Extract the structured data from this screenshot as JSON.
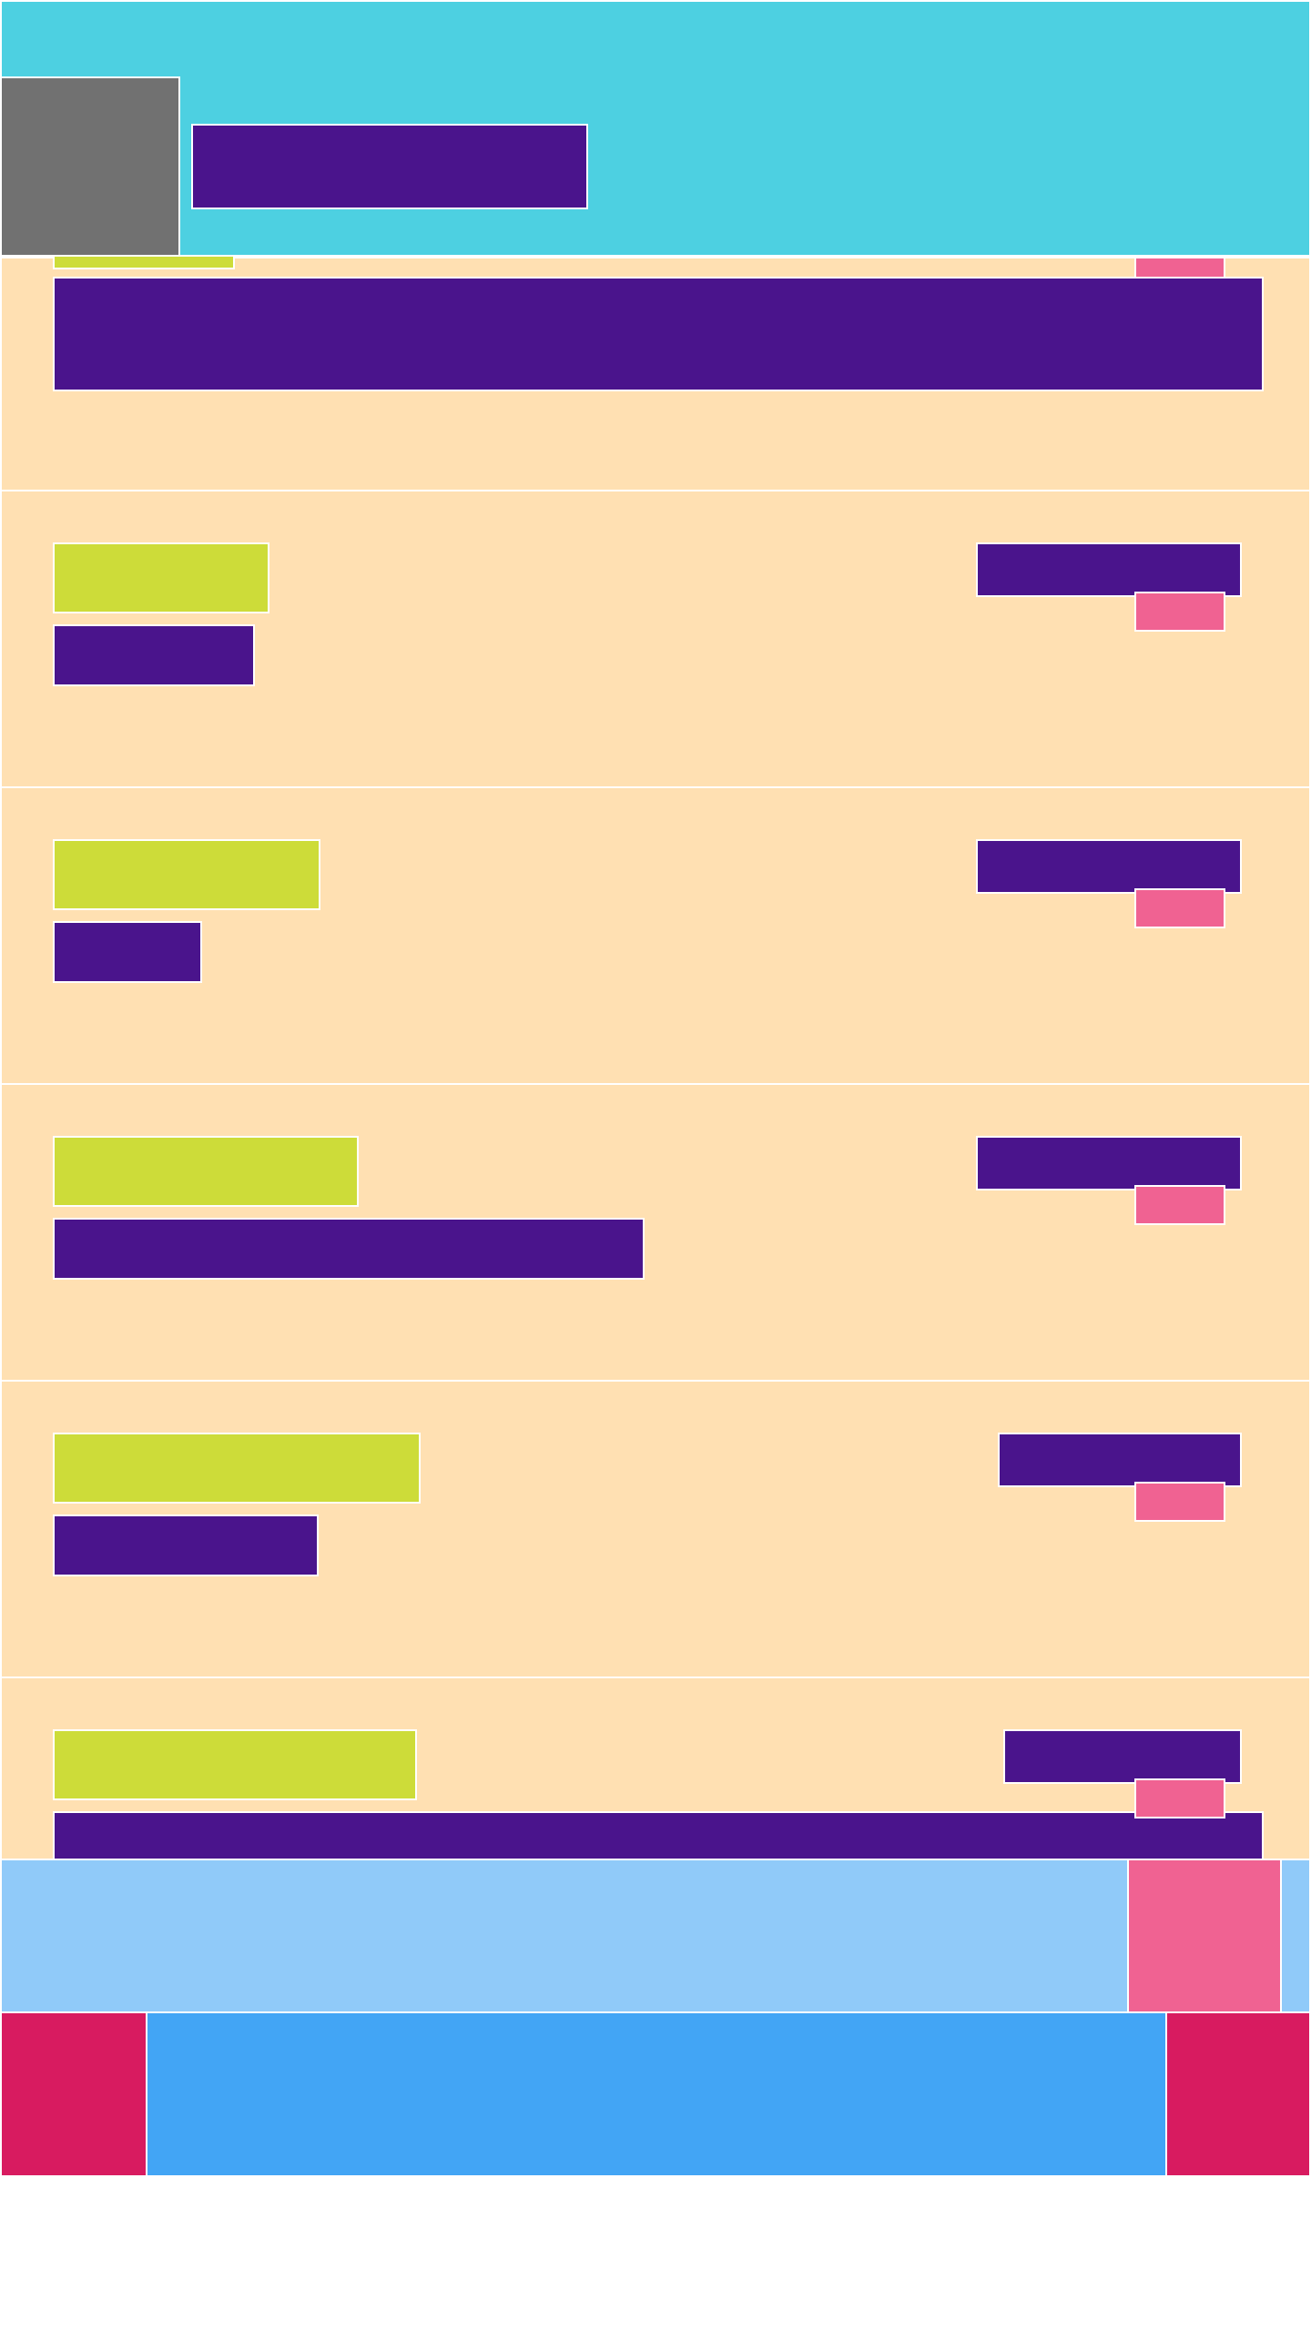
{
  "app": {
    "title": ""
  },
  "header": {
    "title": ""
  },
  "list": {
    "items": [
      {
        "label": "",
        "value": "",
        "date": "",
        "badge": ""
      },
      {
        "label": "",
        "value": "",
        "date": "",
        "badge": ""
      },
      {
        "label": "",
        "value": "",
        "date": "",
        "badge": ""
      },
      {
        "label": "",
        "value": "",
        "date": "",
        "badge": ""
      },
      {
        "label": "",
        "value": "",
        "date": "",
        "badge": ""
      },
      {
        "label": "",
        "value": "",
        "date": "",
        "badge": ""
      }
    ]
  },
  "action_bar": {
    "text": "",
    "button_label": ""
  },
  "bottom_nav": {
    "center_label": ""
  },
  "colors": {
    "header": "#4dd0e1",
    "row_background": "#ffe0b2",
    "title_block": "#4a148c",
    "label_block": "#cddc39",
    "badge": "#f06292",
    "action_bar": "#90caf9",
    "bottom_nav": "#d81b60",
    "bottom_nav_center": "#42a5f5",
    "thumbnail": "#717171"
  }
}
